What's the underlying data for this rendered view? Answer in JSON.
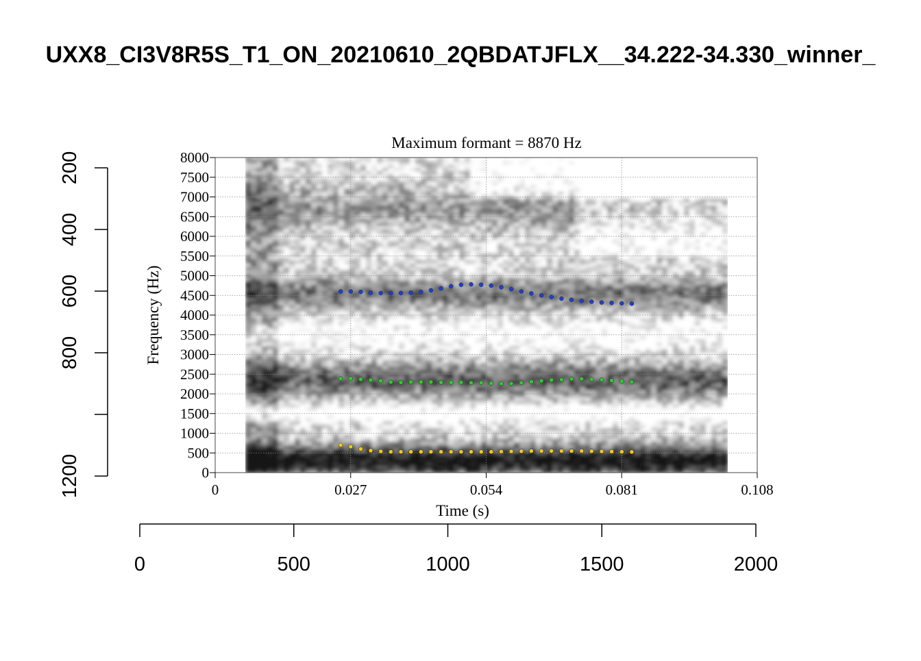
{
  "page_title": "UXX8_CI3V8R5S_T1_ON_20210610_2QBDATJFLX__34.222-34.330_winner_",
  "chart_data": {
    "type": "scatter",
    "title": "Maximum formant  =  8870 Hz",
    "xlabel": "Time (s)",
    "ylabel": "Frequency (Hz)",
    "xlim": [
      0,
      0.108
    ],
    "ylim": [
      0,
      8000
    ],
    "x_ticks": [
      "0",
      "0.027",
      "0.054",
      "0.081",
      "0.108"
    ],
    "x_tick_values": [
      0,
      0.027,
      0.054,
      0.081,
      0.108
    ],
    "y_ticks": [
      "0",
      "500",
      "1000",
      "1500",
      "2000",
      "2500",
      "3000",
      "3500",
      "4000",
      "4500",
      "5000",
      "5500",
      "6000",
      "6500",
      "7000",
      "7500",
      "8000"
    ],
    "y_tick_values": [
      0,
      500,
      1000,
      1500,
      2000,
      2500,
      3000,
      3500,
      4000,
      4500,
      5000,
      5500,
      6000,
      6500,
      7000,
      7500,
      8000
    ],
    "grid": true,
    "background": "grayscale spectrogram, time 0.006-0.102 s",
    "series": [
      {
        "color": "#1f3fd6",
        "x": [
          0.025,
          0.027,
          0.029,
          0.031,
          0.033,
          0.035,
          0.037,
          0.039,
          0.041,
          0.043,
          0.045,
          0.047,
          0.049,
          0.051,
          0.053,
          0.055,
          0.057,
          0.059,
          0.061,
          0.063,
          0.065,
          0.067,
          0.069,
          0.071,
          0.073,
          0.075,
          0.077,
          0.079,
          0.081,
          0.083
        ],
        "y": [
          4600,
          4600,
          4590,
          4570,
          4560,
          4560,
          4560,
          4570,
          4590,
          4630,
          4680,
          4730,
          4770,
          4780,
          4770,
          4750,
          4710,
          4660,
          4600,
          4550,
          4500,
          4460,
          4420,
          4390,
          4360,
          4340,
          4320,
          4310,
          4300,
          4290
        ]
      },
      {
        "color": "#2ecc2e",
        "x": [
          0.025,
          0.027,
          0.029,
          0.031,
          0.033,
          0.035,
          0.037,
          0.039,
          0.041,
          0.043,
          0.045,
          0.047,
          0.049,
          0.051,
          0.053,
          0.055,
          0.057,
          0.059,
          0.061,
          0.063,
          0.065,
          0.067,
          0.069,
          0.071,
          0.073,
          0.075,
          0.077,
          0.079,
          0.081,
          0.083
        ],
        "y": [
          2390,
          2390,
          2370,
          2350,
          2330,
          2300,
          2290,
          2300,
          2300,
          2300,
          2290,
          2290,
          2290,
          2280,
          2280,
          2270,
          2260,
          2260,
          2280,
          2310,
          2330,
          2350,
          2360,
          2380,
          2380,
          2370,
          2360,
          2340,
          2320,
          2300
        ]
      },
      {
        "color": "#f2c81a",
        "x": [
          0.025,
          0.027,
          0.029,
          0.031,
          0.033,
          0.035,
          0.037,
          0.039,
          0.041,
          0.043,
          0.045,
          0.047,
          0.049,
          0.051,
          0.053,
          0.055,
          0.057,
          0.059,
          0.061,
          0.063,
          0.065,
          0.067,
          0.069,
          0.071,
          0.073,
          0.075,
          0.077,
          0.079,
          0.081,
          0.083
        ],
        "y": [
          700,
          660,
          600,
          560,
          540,
          530,
          530,
          530,
          530,
          530,
          530,
          530,
          530,
          530,
          530,
          530,
          535,
          540,
          545,
          550,
          550,
          550,
          550,
          550,
          550,
          545,
          540,
          535,
          530,
          525
        ]
      }
    ]
  },
  "outer_axes": {
    "y_ticks": [
      "200",
      "400",
      "600",
      "800",
      "1200"
    ],
    "y_tick_values": [
      200,
      400,
      600,
      800,
      1200
    ],
    "ylim": [
      1200,
      200
    ],
    "x_ticks": [
      "0",
      "500",
      "1000",
      "1500",
      "2000"
    ],
    "x_tick_values": [
      0,
      500,
      1000,
      1500,
      2000
    ],
    "xlim": [
      0,
      2000
    ]
  }
}
